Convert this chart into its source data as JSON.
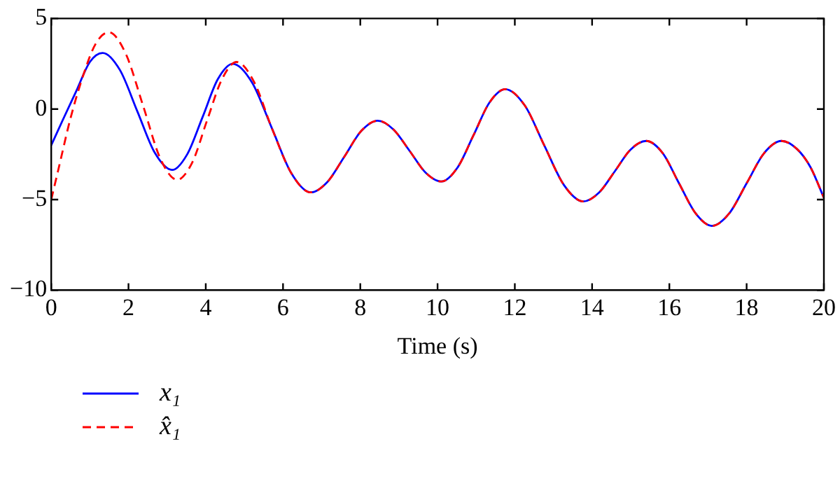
{
  "chart_data": {
    "type": "line",
    "xlabel": "Time (s)",
    "xlim": [
      0,
      20
    ],
    "xticks": [
      0,
      2,
      4,
      6,
      8,
      10,
      12,
      14,
      16,
      18,
      20
    ],
    "ylim": [
      -10,
      5
    ],
    "yticks": [
      {
        "value": -10,
        "label": "−10"
      },
      {
        "value": -5,
        "label": "−5"
      },
      0,
      5
    ],
    "grid": false,
    "legend": "bottom left",
    "marker": "none",
    "series": [
      {
        "name": "x₁",
        "color": "#0000ff",
        "line_style": "solid",
        "x": [
          0,
          0.3,
          0.65,
          1.0,
          1.33,
          1.78,
          2.23,
          2.68,
          3.13,
          3.52,
          3.92,
          4.31,
          4.7,
          5.2,
          5.71,
          6.22,
          6.72,
          7.15,
          7.59,
          8.02,
          8.45,
          8.86,
          9.28,
          9.69,
          10.1,
          10.51,
          10.93,
          11.34,
          11.75,
          12.26,
          12.76,
          13.27,
          13.77,
          14.18,
          14.59,
          14.99,
          15.4,
          15.83,
          16.25,
          16.68,
          17.1,
          17.55,
          18.0,
          18.45,
          18.9,
          19.3,
          19.65,
          20
        ],
        "values": [
          -2,
          -0.6,
          1.0,
          2.6,
          3.1,
          2.15,
          -0.13,
          -2.41,
          -3.36,
          -2.5,
          -0.43,
          1.64,
          2.5,
          1.46,
          -1.05,
          -3.56,
          -4.6,
          -4.02,
          -2.62,
          -1.22,
          -0.64,
          -1.13,
          -2.32,
          -3.51,
          -4.0,
          -3.25,
          -1.45,
          0.35,
          1.1,
          0.19,
          -2.0,
          -4.19,
          -5.1,
          -4.61,
          -3.43,
          -2.25,
          -1.76,
          -2.44,
          -4.1,
          -5.76,
          -6.45,
          -5.76,
          -4.1,
          -2.44,
          -1.76,
          -2.2,
          -3.2,
          -4.9
        ]
      },
      {
        "name": "x̂₁",
        "color": "#ff0000",
        "line_style": "dashed",
        "x": [
          0,
          0.2,
          0.5,
          0.85,
          1.15,
          1.49,
          1.93,
          2.38,
          2.82,
          3.26,
          3.65,
          4.03,
          4.42,
          4.8,
          5.25,
          5.71,
          6.22,
          6.72,
          7.15,
          7.59,
          8.02,
          8.45,
          8.86,
          9.28,
          9.69,
          10.1,
          10.51,
          10.93,
          11.34,
          11.75,
          12.26,
          12.76,
          13.27,
          13.77,
          14.18,
          14.59,
          14.99,
          15.4,
          15.83,
          16.25,
          16.68,
          17.1,
          17.55,
          18.0,
          18.45,
          18.9,
          19.3,
          19.65,
          20
        ],
        "values": [
          -5,
          -3.2,
          -0.5,
          2.0,
          3.6,
          4.24,
          3.05,
          0.17,
          -2.71,
          -3.9,
          -2.95,
          -0.65,
          1.65,
          2.6,
          1.5,
          -1.05,
          -3.56,
          -4.6,
          -4.02,
          -2.62,
          -1.22,
          -0.64,
          -1.13,
          -2.32,
          -3.51,
          -4.0,
          -3.25,
          -1.45,
          0.35,
          1.1,
          0.19,
          -2.0,
          -4.19,
          -5.1,
          -4.61,
          -3.43,
          -2.25,
          -1.76,
          -2.44,
          -4.1,
          -5.76,
          -6.45,
          -5.76,
          -4.1,
          -2.44,
          -1.76,
          -2.2,
          -3.2,
          -4.9
        ]
      }
    ]
  }
}
